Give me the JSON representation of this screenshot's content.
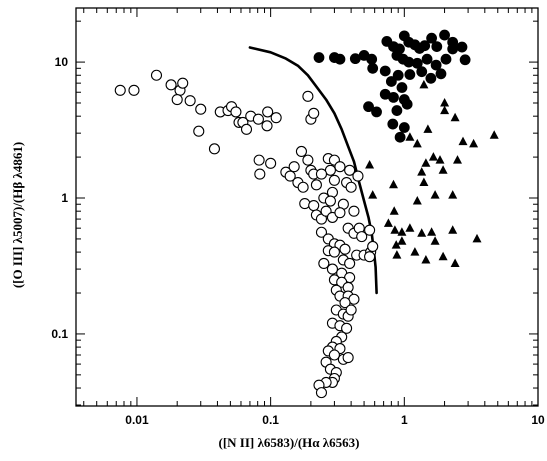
{
  "chart_data": {
    "type": "scatter",
    "title": "",
    "xlabel": "([N II] λ6583)/(Hα λ6563)",
    "ylabel": "([O III] λ5007)/(Hβ λ4861)",
    "xscale": "log",
    "yscale": "log",
    "xlim": [
      0.0035,
      10
    ],
    "ylim": [
      0.0295,
      25
    ],
    "x_ticks": [
      {
        "value": 0.01,
        "label": "0.01"
      },
      {
        "value": 0.1,
        "label": "0.1"
      },
      {
        "value": 1,
        "label": "1"
      },
      {
        "value": 10,
        "label": "10"
      }
    ],
    "y_ticks": [
      {
        "value": 0.1,
        "label": "0.1"
      },
      {
        "value": 1,
        "label": "1"
      },
      {
        "value": 10,
        "label": "10"
      }
    ],
    "grid": false,
    "legend": "none",
    "series": [
      {
        "marker": "open-circle",
        "points": [
          [
            0.0075,
            6.2
          ],
          [
            0.0095,
            6.2
          ],
          [
            0.014,
            8.0
          ],
          [
            0.018,
            6.8
          ],
          [
            0.021,
            6.2
          ],
          [
            0.022,
            7.0
          ],
          [
            0.02,
            5.3
          ],
          [
            0.025,
            5.2
          ],
          [
            0.03,
            4.5
          ],
          [
            0.029,
            3.1
          ],
          [
            0.038,
            2.3
          ],
          [
            0.042,
            4.3
          ],
          [
            0.048,
            4.4
          ],
          [
            0.051,
            4.7
          ],
          [
            0.055,
            4.3
          ],
          [
            0.058,
            3.6
          ],
          [
            0.062,
            3.6
          ],
          [
            0.066,
            3.2
          ],
          [
            0.071,
            4.0
          ],
          [
            0.081,
            3.8
          ],
          [
            0.095,
            4.3
          ],
          [
            0.094,
            3.4
          ],
          [
            0.11,
            3.9
          ],
          [
            0.19,
            5.6
          ],
          [
            0.2,
            3.8
          ],
          [
            0.21,
            4.2
          ],
          [
            0.082,
            1.9
          ],
          [
            0.083,
            1.5
          ],
          [
            0.1,
            1.8
          ],
          [
            0.13,
            1.55
          ],
          [
            0.15,
            1.7
          ],
          [
            0.14,
            1.45
          ],
          [
            0.16,
            1.3
          ],
          [
            0.17,
            2.2
          ],
          [
            0.19,
            1.9
          ],
          [
            0.2,
            1.6
          ],
          [
            0.21,
            1.5
          ],
          [
            0.175,
            1.2
          ],
          [
            0.22,
            1.25
          ],
          [
            0.27,
            1.95
          ],
          [
            0.3,
            1.9
          ],
          [
            0.33,
            1.7
          ],
          [
            0.39,
            1.6
          ],
          [
            0.45,
            1.45
          ],
          [
            0.28,
            1.6
          ],
          [
            0.24,
            1.5
          ],
          [
            0.3,
            1.35
          ],
          [
            0.37,
            1.3
          ],
          [
            0.29,
            1.1
          ],
          [
            0.4,
            1.2
          ],
          [
            0.18,
            0.91
          ],
          [
            0.21,
            0.88
          ],
          [
            0.25,
            1.0
          ],
          [
            0.28,
            0.95
          ],
          [
            0.35,
            0.9
          ],
          [
            0.42,
            0.8
          ],
          [
            0.22,
            0.75
          ],
          [
            0.24,
            0.7
          ],
          [
            0.26,
            0.8
          ],
          [
            0.29,
            0.72
          ],
          [
            0.33,
            0.78
          ],
          [
            0.38,
            0.6
          ],
          [
            0.42,
            0.55
          ],
          [
            0.46,
            0.6
          ],
          [
            0.48,
            0.52
          ],
          [
            0.55,
            0.58
          ],
          [
            0.24,
            0.56
          ],
          [
            0.27,
            0.5
          ],
          [
            0.3,
            0.46
          ],
          [
            0.33,
            0.45
          ],
          [
            0.36,
            0.42
          ],
          [
            0.27,
            0.41
          ],
          [
            0.3,
            0.4
          ],
          [
            0.35,
            0.35
          ],
          [
            0.39,
            0.33
          ],
          [
            0.44,
            0.38
          ],
          [
            0.5,
            0.38
          ],
          [
            0.56,
            0.4
          ],
          [
            0.58,
            0.44
          ],
          [
            0.55,
            0.37
          ],
          [
            0.25,
            0.33
          ],
          [
            0.29,
            0.3
          ],
          [
            0.34,
            0.28
          ],
          [
            0.39,
            0.26
          ],
          [
            0.3,
            0.25
          ],
          [
            0.34,
            0.24
          ],
          [
            0.38,
            0.22
          ],
          [
            0.31,
            0.21
          ],
          [
            0.33,
            0.19
          ],
          [
            0.38,
            0.19
          ],
          [
            0.42,
            0.18
          ],
          [
            0.36,
            0.17
          ],
          [
            0.31,
            0.15
          ],
          [
            0.35,
            0.14
          ],
          [
            0.38,
            0.135
          ],
          [
            0.4,
            0.15
          ],
          [
            0.29,
            0.12
          ],
          [
            0.33,
            0.115
          ],
          [
            0.37,
            0.11
          ],
          [
            0.34,
            0.095
          ],
          [
            0.31,
            0.088
          ],
          [
            0.29,
            0.08
          ],
          [
            0.33,
            0.078
          ],
          [
            0.27,
            0.075
          ],
          [
            0.3,
            0.07
          ],
          [
            0.35,
            0.065
          ],
          [
            0.38,
            0.067
          ],
          [
            0.26,
            0.062
          ],
          [
            0.28,
            0.055
          ],
          [
            0.31,
            0.052
          ],
          [
            0.3,
            0.047
          ],
          [
            0.29,
            0.044
          ],
          [
            0.26,
            0.044
          ],
          [
            0.23,
            0.042
          ],
          [
            0.24,
            0.037
          ]
        ]
      },
      {
        "marker": "filled-circle",
        "points": [
          [
            0.23,
            10.8
          ],
          [
            0.3,
            10.8
          ],
          [
            0.33,
            10.5
          ],
          [
            0.43,
            10.6
          ],
          [
            0.5,
            11.2
          ],
          [
            0.57,
            10.5
          ],
          [
            0.74,
            14.2
          ],
          [
            0.83,
            13.0
          ],
          [
            0.92,
            12.5
          ],
          [
            1.0,
            15.6
          ],
          [
            1.08,
            14.0
          ],
          [
            1.2,
            13.4
          ],
          [
            1.3,
            12.6
          ],
          [
            1.42,
            13.2
          ],
          [
            1.6,
            15.0
          ],
          [
            1.75,
            13.0
          ],
          [
            2.0,
            15.8
          ],
          [
            2.3,
            14.0
          ],
          [
            0.88,
            11.2
          ],
          [
            0.98,
            10.5
          ],
          [
            1.08,
            10.0
          ],
          [
            1.25,
            9.8
          ],
          [
            1.48,
            10.5
          ],
          [
            1.73,
            9.5
          ],
          [
            2.05,
            10.5
          ],
          [
            2.3,
            12.5
          ],
          [
            2.7,
            12.9
          ],
          [
            2.85,
            10.4
          ],
          [
            0.58,
            9.0
          ],
          [
            0.72,
            8.6
          ],
          [
            0.9,
            8.0
          ],
          [
            1.1,
            8.1
          ],
          [
            1.35,
            8.5
          ],
          [
            1.58,
            7.6
          ],
          [
            1.88,
            8.2
          ],
          [
            0.8,
            7.2
          ],
          [
            0.96,
            6.5
          ],
          [
            0.72,
            5.8
          ],
          [
            0.83,
            5.5
          ],
          [
            1.0,
            5.3
          ],
          [
            0.54,
            4.7
          ],
          [
            0.62,
            4.3
          ],
          [
            0.88,
            4.4
          ],
          [
            1.05,
            4.9
          ],
          [
            0.82,
            3.5
          ],
          [
            1.0,
            3.3
          ],
          [
            0.93,
            2.8
          ]
        ]
      },
      {
        "marker": "filled-triangle",
        "points": [
          [
            1.4,
            6.8
          ],
          [
            2.0,
            5.0
          ],
          [
            2.0,
            4.4
          ],
          [
            2.4,
            3.9
          ],
          [
            2.75,
            2.6
          ],
          [
            3.3,
            2.5
          ],
          [
            4.7,
            2.9
          ],
          [
            1.5,
            3.2
          ],
          [
            1.25,
            2.5
          ],
          [
            1.1,
            2.8
          ],
          [
            0.55,
            1.75
          ],
          [
            1.65,
            2.0
          ],
          [
            1.85,
            1.9
          ],
          [
            2.5,
            1.9
          ],
          [
            1.95,
            1.6
          ],
          [
            1.45,
            1.8
          ],
          [
            1.35,
            1.55
          ],
          [
            0.58,
            1.05
          ],
          [
            0.83,
            1.25
          ],
          [
            0.84,
            0.8
          ],
          [
            1.25,
            0.95
          ],
          [
            1.7,
            1.05
          ],
          [
            1.4,
            1.3
          ],
          [
            2.3,
            1.05
          ],
          [
            0.76,
            0.65
          ],
          [
            0.85,
            0.58
          ],
          [
            1.1,
            0.6
          ],
          [
            1.35,
            0.55
          ],
          [
            0.96,
            0.48
          ],
          [
            0.87,
            0.45
          ],
          [
            1.6,
            0.56
          ],
          [
            1.7,
            0.48
          ],
          [
            2.3,
            0.58
          ],
          [
            3.5,
            0.5
          ],
          [
            0.88,
            0.38
          ],
          [
            1.2,
            0.4
          ],
          [
            1.45,
            0.35
          ],
          [
            1.95,
            0.37
          ],
          [
            2.4,
            0.33
          ],
          [
            0.96,
            0.56
          ]
        ]
      }
    ],
    "curve": {
      "style": "solid",
      "points": [
        [
          0.07,
          12.8
        ],
        [
          0.1,
          11.8
        ],
        [
          0.13,
          10.6
        ],
        [
          0.16,
          9.4
        ],
        [
          0.19,
          8.0
        ],
        [
          0.22,
          6.6
        ],
        [
          0.26,
          5.3
        ],
        [
          0.3,
          4.2
        ],
        [
          0.34,
          3.2
        ],
        [
          0.38,
          2.4
        ],
        [
          0.42,
          1.85
        ],
        [
          0.46,
          1.3
        ],
        [
          0.5,
          0.95
        ],
        [
          0.54,
          0.72
        ],
        [
          0.57,
          0.55
        ],
        [
          0.59,
          0.42
        ],
        [
          0.61,
          0.31
        ],
        [
          0.62,
          0.2
        ]
      ]
    }
  }
}
